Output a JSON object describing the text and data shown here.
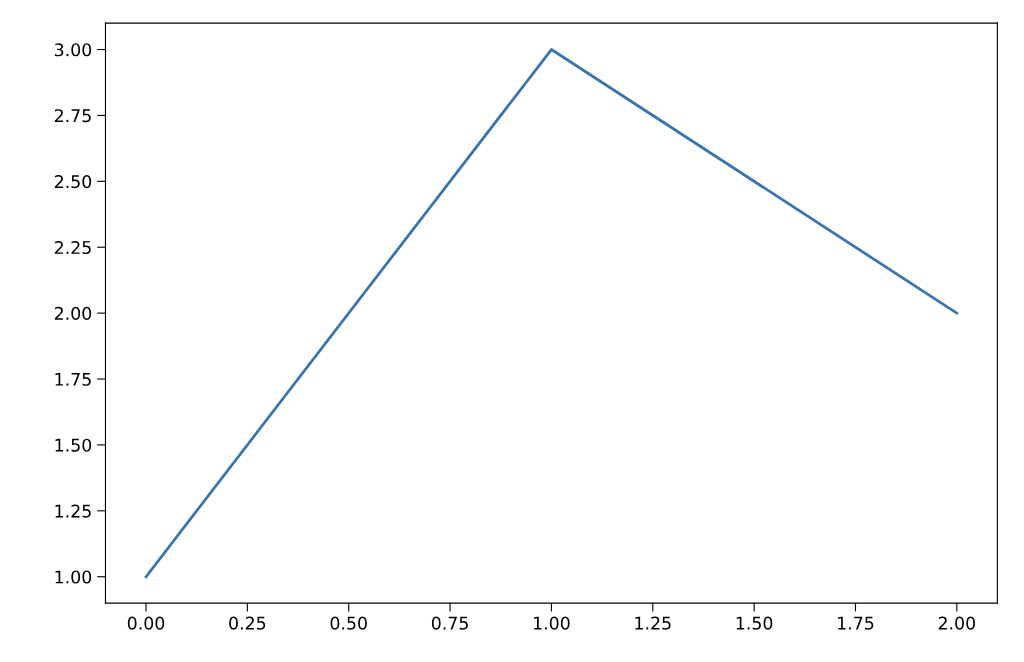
{
  "chart_data": {
    "type": "line",
    "x": [
      0,
      1,
      2
    ],
    "series": [
      {
        "color": "#3a75b0",
        "values": [
          1,
          3,
          2
        ]
      }
    ],
    "xlim": [
      -0.1,
      2.1
    ],
    "xticks": [
      {
        "value": 0,
        "label": "0.00"
      },
      {
        "value": 0.25,
        "label": "0.25"
      },
      {
        "value": 0.5,
        "label": "0.50"
      },
      {
        "value": 0.75,
        "label": "0.75"
      },
      {
        "value": 1,
        "label": "1.00"
      },
      {
        "value": 1.25,
        "label": "1.25"
      },
      {
        "value": 1.5,
        "label": "1.50"
      },
      {
        "value": 1.75,
        "label": "1.75"
      },
      {
        "value": 2,
        "label": "2.00"
      }
    ],
    "ylim": [
      0.9,
      3.1
    ],
    "yticks": [
      {
        "value": 1,
        "label": "1.00"
      },
      {
        "value": 1.25,
        "label": "1.25"
      },
      {
        "value": 1.5,
        "label": "1.50"
      },
      {
        "value": 1.75,
        "label": "1.75"
      },
      {
        "value": 2,
        "label": "2.00"
      },
      {
        "value": 2.25,
        "label": "2.25"
      },
      {
        "value": 2.5,
        "label": "2.50"
      },
      {
        "value": 2.75,
        "label": "2.75"
      },
      {
        "value": 3,
        "label": "3.00"
      }
    ],
    "grid": false,
    "marker": "none",
    "line_style": "solid"
  }
}
